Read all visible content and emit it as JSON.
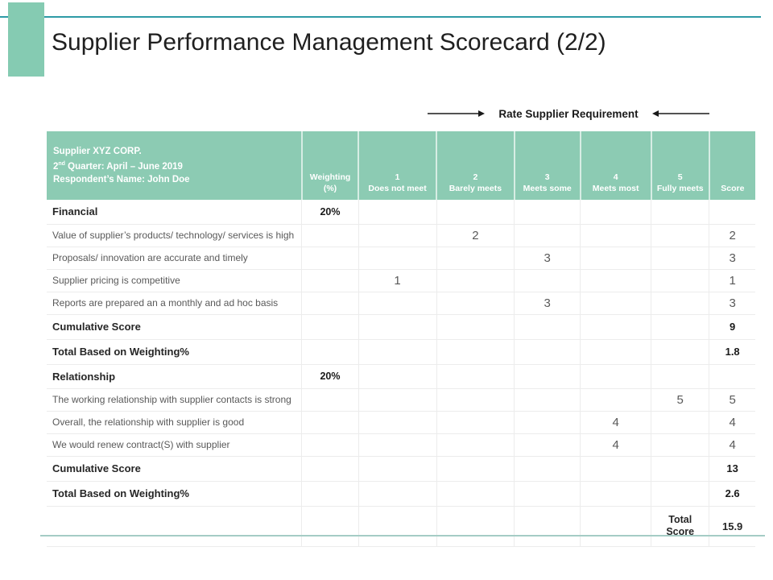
{
  "slide": {
    "title": "Supplier Performance Management Scorecard (2/2)",
    "callout_label": "Rate Supplier Requirement"
  },
  "colors": {
    "header_teal": "#8CCBB3",
    "accent_bar": "#85CBB2",
    "top_line": "#2E9BA6",
    "bottom_line": "#A5CCC5"
  },
  "table": {
    "supplier_header": {
      "line1": "Supplier XYZ CORP.",
      "quarter_pre": "2",
      "quarter_sup": "nd",
      "quarter_post": " Quarter: April – June 2019",
      "line3": "Respondent’s Name: John Doe"
    },
    "columns": [
      {
        "line1": "Weighting",
        "line2": "(%)"
      },
      {
        "line1": "1",
        "line2": "Does not meet"
      },
      {
        "line1": "2",
        "line2": "Barely meets"
      },
      {
        "line1": "3",
        "line2": "Meets some"
      },
      {
        "line1": "4",
        "line2": "Meets most"
      },
      {
        "line1": "5",
        "line2": "Fully meets"
      },
      {
        "line1": "Score",
        "line2": ""
      }
    ],
    "col_widths": [
      "36%",
      "8%",
      "11%",
      "11%",
      "9.3%",
      "10%",
      "8.2%",
      "6.5%"
    ],
    "rows": [
      {
        "style": "section",
        "label": "Financial",
        "weighting": "20%",
        "ratings": [
          "",
          "",
          "",
          "",
          ""
        ],
        "score": ""
      },
      {
        "style": "item",
        "label": "Value of supplier’s products/ technology/ services is high",
        "weighting": "",
        "ratings": [
          "",
          "2",
          "",
          "",
          ""
        ],
        "score": "2"
      },
      {
        "style": "item",
        "label": "Proposals/ innovation are accurate and timely",
        "weighting": "",
        "ratings": [
          "",
          "",
          "3",
          "",
          ""
        ],
        "score": "3"
      },
      {
        "style": "item",
        "label": "Supplier pricing is competitive",
        "weighting": "",
        "ratings": [
          "1",
          "",
          "",
          "",
          ""
        ],
        "score": "1"
      },
      {
        "style": "item",
        "label": "Reports are prepared an a monthly and ad hoc basis",
        "weighting": "",
        "ratings": [
          "",
          "",
          "3",
          "",
          ""
        ],
        "score": "3"
      },
      {
        "style": "summary",
        "label": "Cumulative Score",
        "weighting": "",
        "ratings": [
          "",
          "",
          "",
          "",
          ""
        ],
        "score": "9"
      },
      {
        "style": "summary",
        "label": "Total Based on Weighting%",
        "weighting": "",
        "ratings": [
          "",
          "",
          "",
          "",
          ""
        ],
        "score": "1.8"
      },
      {
        "style": "section",
        "label": "Relationship",
        "weighting": "20%",
        "ratings": [
          "",
          "",
          "",
          "",
          ""
        ],
        "score": ""
      },
      {
        "style": "item",
        "label": "The working relationship with supplier contacts is strong",
        "weighting": "",
        "ratings": [
          "",
          "",
          "",
          "",
          "5"
        ],
        "score": "5"
      },
      {
        "style": "item",
        "label": "Overall, the relationship with supplier is good",
        "weighting": "",
        "ratings": [
          "",
          "",
          "",
          "4",
          ""
        ],
        "score": "4"
      },
      {
        "style": "item",
        "label": "We would renew contract(S) with supplier",
        "weighting": "",
        "ratings": [
          "",
          "",
          "",
          "4",
          ""
        ],
        "score": "4"
      },
      {
        "style": "summary",
        "label": "Cumulative Score",
        "weighting": "",
        "ratings": [
          "",
          "",
          "",
          "",
          ""
        ],
        "score": "13"
      },
      {
        "style": "summary",
        "label": "Total Based on Weighting%",
        "weighting": "",
        "ratings": [
          "",
          "",
          "",
          "",
          ""
        ],
        "score": "2.6"
      },
      {
        "style": "total",
        "label": "",
        "weighting": "",
        "ratings": [
          "",
          "",
          "",
          "",
          "Total Score"
        ],
        "score": "15.9"
      }
    ]
  }
}
